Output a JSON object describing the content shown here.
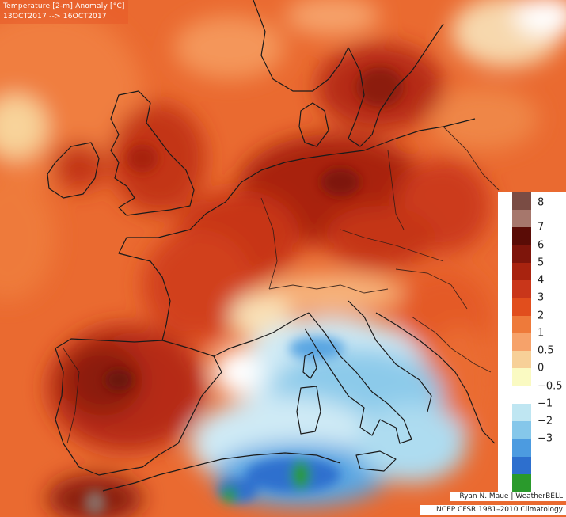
{
  "header": {
    "title": "Temperature [2-m] Anomaly  [°C]",
    "dates": "13OCT2017 --> 16OCT2017"
  },
  "legend": {
    "labels": [
      "8",
      "7",
      "6",
      "5",
      "4",
      "3",
      "2",
      "1",
      "0.5",
      "0",
      "−0.5",
      "−1",
      "−2",
      "−3"
    ],
    "colors": [
      "#7a4c44",
      "#a6776c",
      "#5a0c06",
      "#7e150b",
      "#a8230f",
      "#c9361a",
      "#e14e1d",
      "#ee7a3a",
      "#f6a26a",
      "#f7d098",
      "#fafac2",
      "#ffffff",
      "#bfe6f2",
      "#85c7ea",
      "#4c9be0",
      "#2d6fce",
      "#2a9a2c"
    ]
  },
  "credits": {
    "author": "Ryan N. Maue | WeatherBELL",
    "climatology": "NCEP CFSR 1981–2010 Climatology"
  }
}
